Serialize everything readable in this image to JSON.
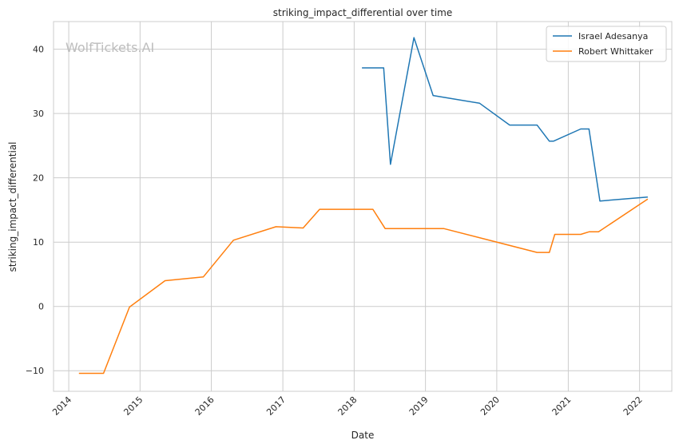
{
  "watermark": "WolfTickets.AI",
  "chart_data": {
    "type": "line",
    "title": "striking_impact_differential over time",
    "xlabel": "Date",
    "ylabel": "striking_impact_differential",
    "xlim": [
      "2013-10-15",
      "2022-06-15"
    ],
    "ylim": [
      -13.2,
      44.3
    ],
    "x_ticks": [
      "2014",
      "2015",
      "2016",
      "2017",
      "2018",
      "2019",
      "2020",
      "2021",
      "2022"
    ],
    "y_ticks": [
      -10,
      0,
      10,
      20,
      30,
      40
    ],
    "y_tick_labels": [
      "−10",
      "0",
      "10",
      "20",
      "30",
      "40"
    ],
    "grid": true,
    "legend_position": "top-right",
    "series": [
      {
        "name": "Israel Adesanya",
        "color": "#1f77b4",
        "points": [
          [
            "2018-02-10",
            37.1
          ],
          [
            "2018-06-01",
            37.1
          ],
          [
            "2018-07-06",
            22.1
          ],
          [
            "2018-11-03",
            41.8
          ],
          [
            "2019-02-09",
            32.8
          ],
          [
            "2019-10-05",
            31.6
          ],
          [
            "2020-03-07",
            28.2
          ],
          [
            "2020-07-25",
            28.2
          ],
          [
            "2020-09-26",
            25.7
          ],
          [
            "2020-10-17",
            25.7
          ],
          [
            "2021-03-06",
            27.6
          ],
          [
            "2021-04-17",
            27.6
          ],
          [
            "2021-06-12",
            16.4
          ],
          [
            "2022-02-12",
            17.0
          ]
        ]
      },
      {
        "name": "Robert Whittaker",
        "color": "#ff7f0e",
        "points": [
          [
            "2014-02-22",
            -10.4
          ],
          [
            "2014-06-28",
            -10.4
          ],
          [
            "2014-11-08",
            -0.1
          ],
          [
            "2015-05-09",
            4.0
          ],
          [
            "2015-11-21",
            4.6
          ],
          [
            "2016-04-23",
            10.3
          ],
          [
            "2016-11-27",
            12.4
          ],
          [
            "2017-04-15",
            12.2
          ],
          [
            "2017-07-08",
            15.1
          ],
          [
            "2018-04-07",
            15.1
          ],
          [
            "2018-06-09",
            12.1
          ],
          [
            "2019-04-06",
            12.1
          ],
          [
            "2020-07-25",
            8.4
          ],
          [
            "2020-09-26",
            8.4
          ],
          [
            "2020-10-24",
            11.2
          ],
          [
            "2021-03-06",
            11.2
          ],
          [
            "2021-04-17",
            11.6
          ],
          [
            "2021-06-05",
            11.6
          ],
          [
            "2022-02-12",
            16.7
          ]
        ]
      }
    ]
  }
}
